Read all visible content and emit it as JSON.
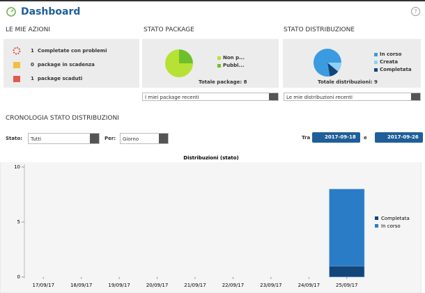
{
  "header": {
    "title": "Dashboard",
    "help": "?"
  },
  "actions": {
    "title": "LE MIE AZIONI",
    "items": [
      {
        "count": 1,
        "label": "Completate con problemi"
      },
      {
        "count": 0,
        "label": "package in scadenza"
      },
      {
        "count": 1,
        "label": "package scaduti"
      }
    ]
  },
  "package_status": {
    "title": "STATO PACKAGE",
    "chart": {
      "type": "pie",
      "categories": [
        "Non p...",
        "Pubbl..."
      ],
      "values": [
        6,
        2
      ],
      "colors": [
        "#b5e234",
        "#6fbf2b"
      ]
    },
    "total_label": "Totale package:",
    "total": 8,
    "select": "I miei package recenti"
  },
  "distribution_status": {
    "title": "STATO DISTRIBUZIONE",
    "chart": {
      "type": "pie",
      "categories": [
        "In corso",
        "Creata",
        "Completata"
      ],
      "values": [
        7,
        1,
        1
      ],
      "colors": [
        "#3a9be0",
        "#8fd0f5",
        "#12457a"
      ]
    },
    "total_label": "Totale distribuzioni:",
    "total": 9,
    "select": "Le mie distribuzioni recenti"
  },
  "history": {
    "title": "CRONOLOGIA STATO DISTRIBUZIONI",
    "filters": {
      "state_label": "Stato:",
      "state": "Tutti",
      "per_label": "Per:",
      "per": "Giorno",
      "from_label": "Tra",
      "from": "2017-09-18",
      "to_label": "e",
      "to": "2017-09-26"
    },
    "chart": {
      "type": "bar",
      "stacked": true,
      "title": "Distribuzioni (stato)",
      "categories": [
        "17/09/17",
        "18/09/17",
        "19/09/17",
        "20/09/17",
        "21/09/17",
        "22/09/17",
        "23/09/17",
        "24/09/17",
        "25/09/17"
      ],
      "series": [
        {
          "name": "Completata",
          "color": "#12457a",
          "values": [
            0,
            0,
            0,
            0,
            0,
            0,
            0,
            0,
            1
          ]
        },
        {
          "name": "In corso",
          "color": "#2a7cc7",
          "values": [
            0,
            0,
            0,
            0,
            0,
            0,
            0,
            0,
            7
          ]
        }
      ],
      "ylim": [
        0,
        10
      ],
      "yticks": [
        0,
        5,
        10
      ],
      "legend": "right"
    }
  }
}
